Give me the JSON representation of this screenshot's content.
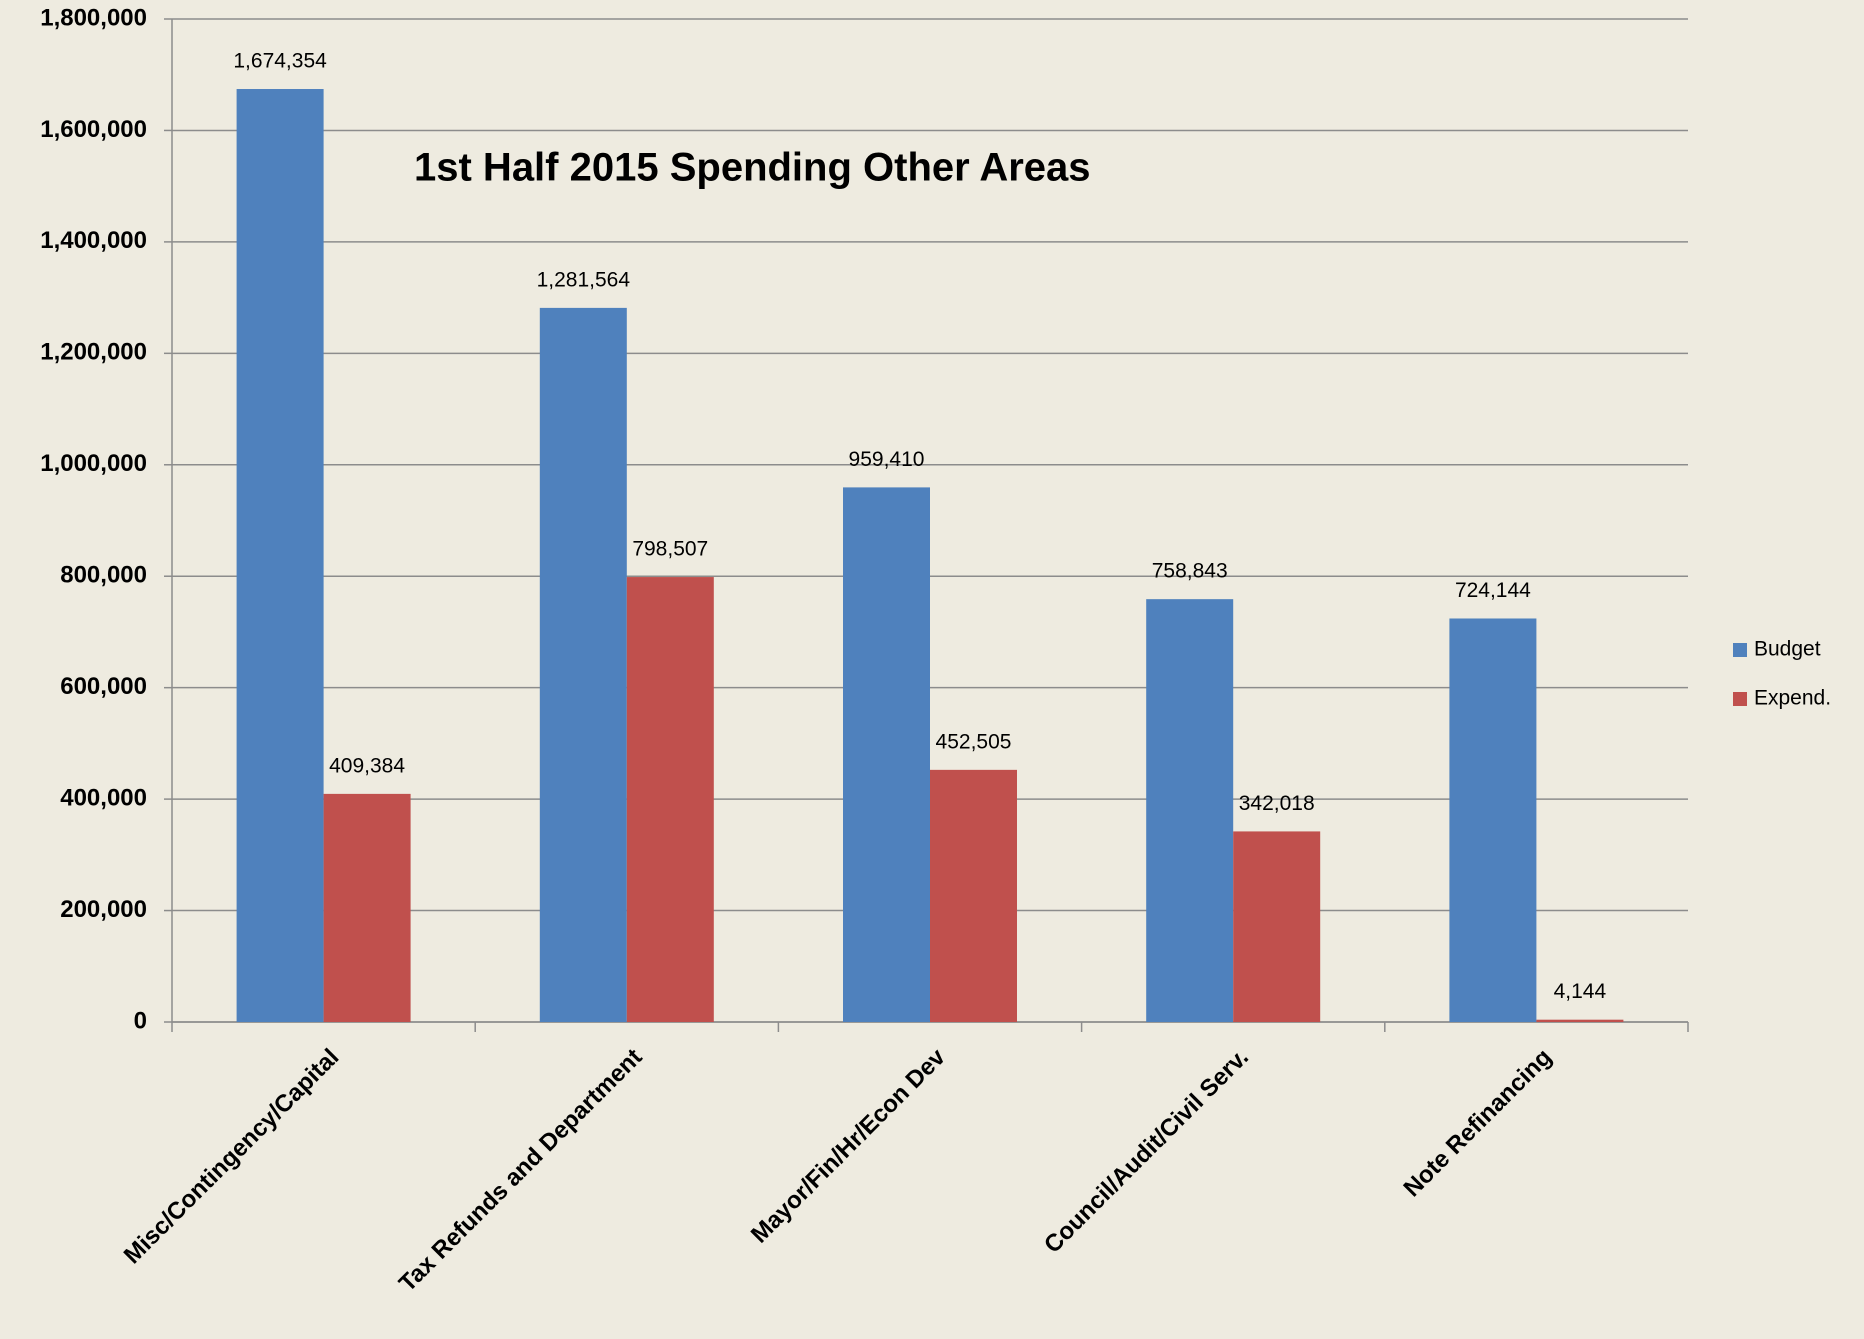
{
  "chart_data": {
    "type": "bar",
    "title": "1st Half 2015 Spending Other Areas",
    "categories": [
      "Misc/Contingency/Capital",
      "Tax Refunds and Department",
      "Mayor/Fin/Hr/Econ Dev",
      "Council/Audit/Civil Serv.",
      "Note Refinancing"
    ],
    "series": [
      {
        "name": "Budget",
        "color": "#4f81bd",
        "values": [
          1674354,
          1281564,
          959410,
          758843,
          724144
        ],
        "value_labels": [
          "1,674,354",
          "1,281,564",
          "959,410",
          "758,843",
          "724,144"
        ]
      },
      {
        "name": "Expend.",
        "color": "#c0504d",
        "values": [
          409384,
          798507,
          452505,
          342018,
          4144
        ],
        "value_labels": [
          "409,384",
          "798,507",
          "452,505",
          "342,018",
          "4,144"
        ]
      }
    ],
    "ylim": [
      0,
      1800000
    ],
    "yticks": [
      0,
      {
        "value": 200000,
        "label": "200,000"
      },
      {
        "value": 400000,
        "label": "400,000"
      },
      {
        "value": 600000,
        "label": "600,000"
      },
      {
        "value": 800000,
        "label": "800,000"
      },
      {
        "value": 1000000,
        "label": "1,000,000"
      },
      {
        "value": 1200000,
        "label": "1,200,000"
      },
      {
        "value": 1400000,
        "label": "1,400,000"
      },
      {
        "value": 1600000,
        "label": "1,600,000"
      },
      {
        "value": 1800000,
        "label": "1,800,000"
      }
    ],
    "grid": true,
    "legend": "right"
  }
}
